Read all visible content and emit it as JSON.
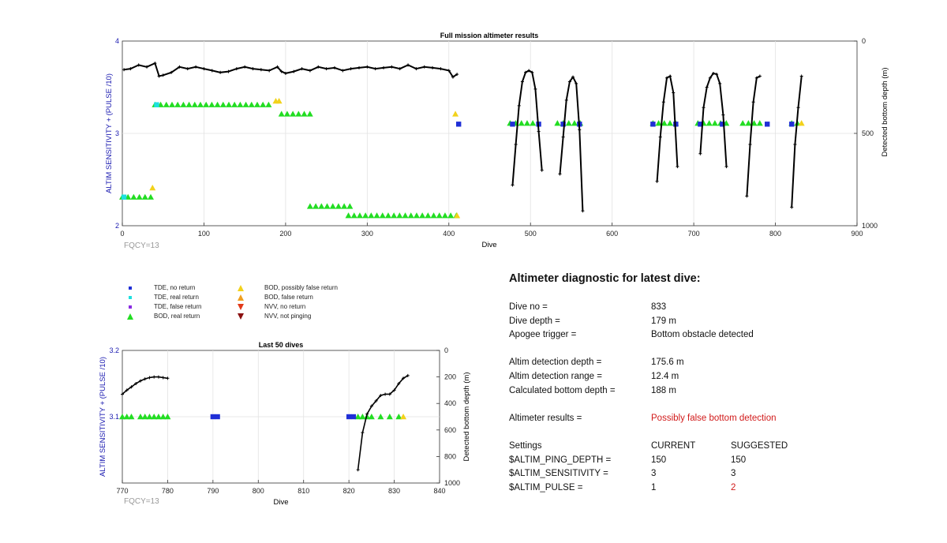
{
  "chart_data": [
    {
      "type": "scatter",
      "title": "Full mission altimeter results",
      "xlabel": "Dive",
      "ylabel_left": "ALTIM SENSITIVITY + (PULSE /10)",
      "ylabel_right": "Detected bottom depth (m)",
      "xlim": [
        0,
        900
      ],
      "ylim_left": [
        2,
        4
      ],
      "ylim_right_reversed": [
        0,
        1000
      ],
      "xticks": [
        "0",
        "100",
        "200",
        "300",
        "400",
        "500",
        "600",
        "700",
        "800",
        "900"
      ],
      "yticks_left": [
        "2",
        "3",
        "4"
      ],
      "yticks_right": [
        "0",
        "500",
        "1000"
      ],
      "grid": true,
      "annotation": "FQCY=13",
      "series": [
        {
          "name": "BOD, real return",
          "segments": [
            [
              40,
              185,
              3.31
            ],
            [
              195,
              233,
              3.21
            ],
            [
              230,
              283,
              2.21
            ],
            [
              277,
              410,
              2.11
            ],
            [
              0,
              38,
              2.31
            ],
            [
              475,
              508,
              3.11
            ],
            [
              533,
              562,
              3.11
            ],
            [
              650,
              680,
              3.11
            ],
            [
              705,
              740,
              3.11
            ],
            [
              760,
              785,
              3.11
            ],
            [
              820,
              830,
              3.11
            ]
          ]
        },
        {
          "name": "BOD, possibly false return",
          "points": [
            [
              188,
              3.35
            ],
            [
              192,
              3.35
            ],
            [
              37,
              2.41
            ],
            [
              410,
              2.11
            ],
            [
              408,
              3.21
            ],
            [
              832,
              3.11
            ]
          ]
        },
        {
          "name": "TDE, no return",
          "points": [
            [
              412,
              3.1
            ],
            [
              478,
              3.1
            ],
            [
              510,
              3.1
            ],
            [
              540,
              3.1
            ],
            [
              560,
              3.1
            ],
            [
              650,
              3.1
            ],
            [
              678,
              3.1
            ],
            [
              708,
              3.1
            ],
            [
              735,
              3.1
            ],
            [
              790,
              3.1
            ],
            [
              820,
              3.1
            ]
          ]
        },
        {
          "name": "TDE, real return",
          "points": [
            [
              42,
              3.31
            ],
            [
              2,
              2.31
            ]
          ]
        },
        {
          "name": "Detected bottom depth",
          "curves": [
            {
              "x": [
                2,
                10,
                20,
                30,
                40,
                45,
                50,
                60,
                70,
                80,
                90,
                100,
                110,
                120,
                130,
                140,
                150,
                160,
                170,
                180,
                190,
                195,
                200,
                210,
                220,
                230,
                240,
                250,
                260,
                270,
                280,
                290,
                300,
                310,
                320,
                330,
                340,
                350,
                360,
                370,
                380,
                390,
                400,
                405,
                410
              ],
              "depth": [
                155,
                150,
                130,
                140,
                120,
                190,
                185,
                170,
                140,
                150,
                140,
                150,
                160,
                170,
                165,
                150,
                140,
                150,
                155,
                160,
                140,
                165,
                175,
                165,
                150,
                160,
                140,
                150,
                145,
                160,
                150,
                145,
                140,
                150,
                145,
                140,
                150,
                130,
                150,
                140,
                145,
                150,
                160,
                195,
                180
              ]
            },
            {
              "x": [
                478,
                482,
                486,
                490,
                494,
                498,
                502,
                506,
                510,
                514
              ],
              "depth": [
                780,
                560,
                350,
                220,
                170,
                160,
                170,
                260,
                490,
                700
              ]
            },
            {
              "x": [
                536,
                540,
                544,
                548,
                552,
                556,
                560,
                564
              ],
              "depth": [
                720,
                520,
                320,
                220,
                195,
                230,
                480,
                920
              ]
            },
            {
              "x": [
                655,
                659,
                663,
                667,
                671,
                675,
                680
              ],
              "depth": [
                760,
                520,
                330,
                200,
                190,
                280,
                680
              ]
            },
            {
              "x": [
                708,
                712,
                716,
                720,
                724,
                728,
                732,
                736,
                740
              ],
              "depth": [
                610,
                360,
                250,
                200,
                175,
                180,
                230,
                400,
                680
              ]
            },
            {
              "x": [
                765,
                769,
                773,
                777,
                781
              ],
              "depth": [
                840,
                560,
                330,
                200,
                190
              ]
            },
            {
              "x": [
                820,
                824,
                828,
                832
              ],
              "depth": [
                900,
                560,
                360,
                190
              ]
            }
          ]
        }
      ]
    },
    {
      "type": "scatter",
      "title": "Last 50 dives",
      "xlabel": "Dive",
      "ylabel_left": "ALTIM SENSITIVITY + (PULSE /10)",
      "ylabel_right": "Detected bottom depth (m)",
      "xlim": [
        770,
        840
      ],
      "ylim_left": [
        3.0,
        3.2
      ],
      "ylim_right_reversed": [
        0,
        1000
      ],
      "xticks": [
        "770",
        "780",
        "790",
        "800",
        "810",
        "820",
        "830",
        "840"
      ],
      "yticks_left": [
        "3.1",
        "3.2"
      ],
      "yticks_right": [
        "0",
        "200",
        "400",
        "600",
        "800",
        "1000"
      ],
      "grid": true,
      "annotation": "FQCY=13",
      "series": [
        {
          "name": "BOD, real return",
          "points": [
            [
              770,
              3.1
            ],
            [
              771,
              3.1
            ],
            [
              772,
              3.1
            ],
            [
              774,
              3.1
            ],
            [
              775,
              3.1
            ],
            [
              776,
              3.1
            ],
            [
              777,
              3.1
            ],
            [
              778,
              3.1
            ],
            [
              779,
              3.1
            ],
            [
              780,
              3.1
            ],
            [
              822,
              3.1
            ],
            [
              823,
              3.1
            ],
            [
              824,
              3.1
            ],
            [
              825,
              3.1
            ],
            [
              827,
              3.1
            ],
            [
              829,
              3.1
            ],
            [
              831,
              3.1
            ]
          ]
        },
        {
          "name": "BOD, possibly false return",
          "points": [
            [
              832,
              3.1
            ]
          ]
        },
        {
          "name": "TDE, no return",
          "points": [
            [
              790,
              3.1
            ],
            [
              791,
              3.1
            ],
            [
              820,
              3.1
            ],
            [
              821,
              3.1
            ]
          ]
        },
        {
          "name": "Detected bottom depth",
          "curves": [
            {
              "x": [
                770,
                771,
                772,
                773,
                774,
                775,
                776,
                777,
                778,
                779,
                780
              ],
              "depth": [
                330,
                300,
                275,
                250,
                230,
                215,
                205,
                200,
                200,
                205,
                210
              ]
            },
            {
              "x": [
                822,
                823,
                824,
                825,
                826,
                827,
                828,
                829,
                830,
                831,
                832,
                833
              ],
              "depth": [
                900,
                620,
                480,
                420,
                380,
                340,
                330,
                330,
                300,
                250,
                210,
                190
              ]
            }
          ]
        }
      ]
    }
  ],
  "legend": [
    {
      "label": "TDE, no return",
      "shape": "square",
      "color": "#1f2fd6"
    },
    {
      "label": "TDE, real return",
      "shape": "square",
      "color": "#1ee0e0"
    },
    {
      "label": "TDE, false return",
      "shape": "square",
      "color": "#8a2be2"
    },
    {
      "label": "BOD, real return",
      "shape": "triangle-up",
      "color": "#22dd22"
    },
    {
      "label": "BOD, possibly false return",
      "shape": "triangle-up",
      "color": "#f2d21b"
    },
    {
      "label": "BOD, false return",
      "shape": "triangle-up",
      "color": "#f0a020"
    },
    {
      "label": "NVV, no return",
      "shape": "triangle-down",
      "color": "#e23a1a"
    },
    {
      "label": "NVV, not pinging",
      "shape": "triangle-down",
      "color": "#8b1010"
    }
  ],
  "diagnostic": {
    "title": "Altimeter diagnostic for latest dive:",
    "dive_no_label": "Dive no =",
    "dive_no": "833",
    "dive_depth_label": "Dive depth =",
    "dive_depth": "179 m",
    "apogee_label": "Apogee trigger =",
    "apogee": "Bottom obstacle detected",
    "det_depth_label": "Altim detection depth =",
    "det_depth": "175.6 m",
    "det_range_label": "Altim detection range =",
    "det_range": "12.4 m",
    "bottom_label": "Calculated bottom depth =",
    "bottom": "188 m",
    "results_label": "Altimeter results =",
    "results": "Possibly false bottom detection",
    "settings_label": "Settings",
    "current_label": "CURRENT",
    "suggested_label": "SUGGESTED",
    "ping_label": "$ALTIM_PING_DEPTH =",
    "ping_cur": "150",
    "ping_sug": "150",
    "sens_label": "$ALTIM_SENSITIVITY =",
    "sens_cur": "3",
    "sens_sug": "3",
    "pulse_label": "$ALTIM_PULSE =",
    "pulse_cur": "1",
    "pulse_sug": "2"
  },
  "colors": {
    "axis_left": "#1a1ab0",
    "alert": "#d11a1a",
    "depth_line": "#000000",
    "grid": "#e2e2e2"
  }
}
